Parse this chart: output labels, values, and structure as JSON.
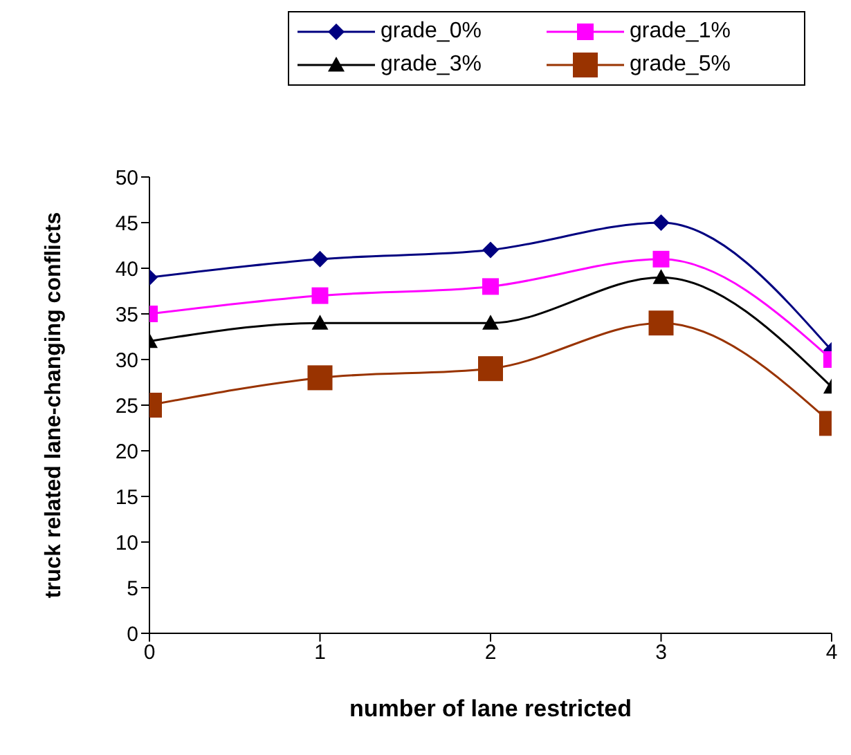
{
  "chart_data": {
    "type": "line",
    "xlabel": "number of lane restricted",
    "ylabel": "truck related lane-changing conflicts",
    "x": [
      0,
      1,
      2,
      3,
      4
    ],
    "xlim": [
      0,
      4
    ],
    "xticks": [
      0,
      1,
      2,
      3,
      4
    ],
    "ylim": [
      0,
      50
    ],
    "yticks": [
      0,
      5,
      10,
      15,
      20,
      25,
      30,
      35,
      40,
      45,
      50
    ],
    "grid": false,
    "legend": "top",
    "series": [
      {
        "name": "grade_0%",
        "color": "#000080",
        "marker": "diamond",
        "values": [
          39,
          41,
          42,
          45,
          31
        ]
      },
      {
        "name": "grade_1%",
        "color": "#ff00ff",
        "marker": "square",
        "values": [
          35,
          37,
          38,
          41,
          30
        ]
      },
      {
        "name": "grade_3%",
        "color": "#000000",
        "marker": "triangle",
        "values": [
          32,
          34,
          34,
          39,
          27
        ]
      },
      {
        "name": "grade_5%",
        "color": "#993300",
        "marker": "square",
        "values": [
          25,
          28,
          29,
          34,
          23
        ]
      }
    ]
  }
}
